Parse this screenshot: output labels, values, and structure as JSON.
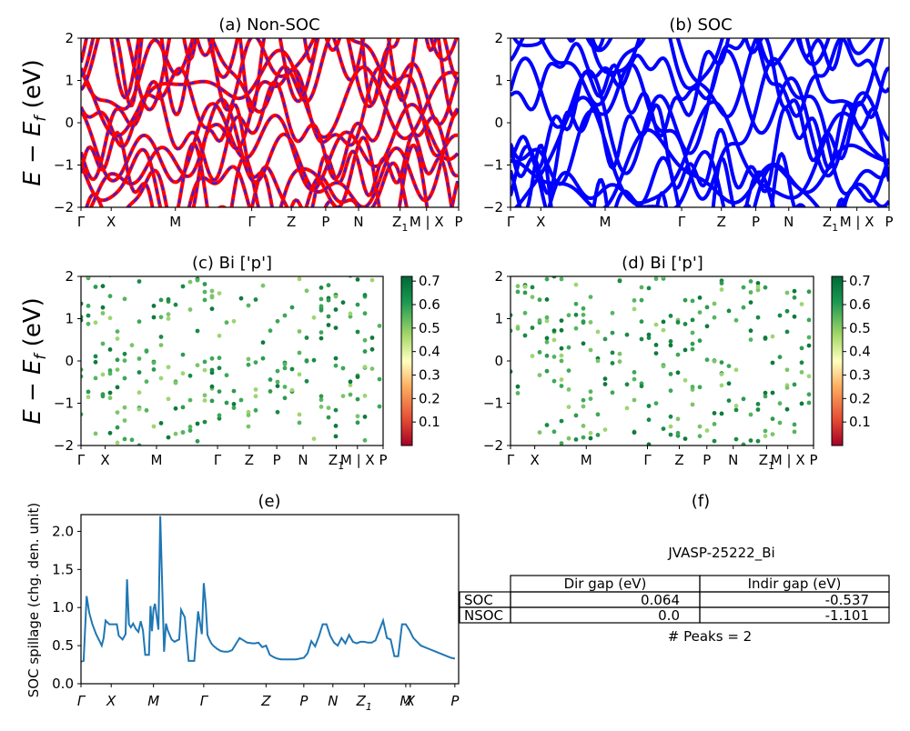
{
  "panels": [
    {
      "id": "a",
      "title": "(a) Non-SOC",
      "type": "bands",
      "colors": [
        "#ff0000",
        "#2020ff"
      ],
      "dashed": true
    },
    {
      "id": "b",
      "title": "(b) SOC",
      "type": "bands",
      "colors": [
        "#0000ff"
      ],
      "dashed": false
    },
    {
      "id": "c",
      "title": "(c)  Bi ['p']",
      "type": "projected"
    },
    {
      "id": "d",
      "title": "(d) Bi ['p']",
      "type": "projected"
    },
    {
      "id": "e",
      "title": "(e)",
      "type": "spillage"
    },
    {
      "id": "f",
      "title": "(f)",
      "type": "table"
    }
  ],
  "ylabel_bands": "E − E",
  "ylabel_sub": "f",
  "ylabel_unit": " (eV)",
  "ylabel_spillage": "SOC spillage (chg. den. unit)",
  "band_yticks": [
    "2",
    "1",
    "0",
    "−1",
    "−2"
  ],
  "kpath_ab": [
    {
      "label": "Γ",
      "sub": "",
      "pos": 0.0
    },
    {
      "label": "X",
      "sub": "",
      "pos": 0.08
    },
    {
      "label": "M",
      "sub": "",
      "pos": 0.25
    },
    {
      "label": "Γ",
      "sub": "",
      "pos": 0.452
    },
    {
      "label": "Z",
      "sub": "",
      "pos": 0.557
    },
    {
      "label": "P",
      "sub": "",
      "pos": 0.648
    },
    {
      "label": "N",
      "sub": "",
      "pos": 0.735
    },
    {
      "label": "Z",
      "sub": "1",
      "pos": 0.845
    },
    {
      "label": "M | X",
      "sub": "",
      "pos": 0.915
    },
    {
      "label": "P",
      "sub": "",
      "pos": 1.0
    }
  ],
  "kpath_cd": [
    {
      "label": "Γ",
      "sub": "",
      "pos": 0.0
    },
    {
      "label": "X",
      "sub": "",
      "pos": 0.08
    },
    {
      "label": "M",
      "sub": "",
      "pos": 0.25
    },
    {
      "label": "Γ",
      "sub": "",
      "pos": 0.452
    },
    {
      "label": "Z",
      "sub": "",
      "pos": 0.557
    },
    {
      "label": "P",
      "sub": "",
      "pos": 0.648
    },
    {
      "label": "N",
      "sub": "",
      "pos": 0.735
    },
    {
      "label": "Z",
      "sub": "1",
      "pos": 0.845
    },
    {
      "label": "M | X",
      "sub": "",
      "pos": 0.915
    },
    {
      "label": "P",
      "sub": "",
      "pos": 1.0
    }
  ],
  "colorbar": {
    "ticks": [
      "0.7",
      "0.6",
      "0.5",
      "0.4",
      "0.3",
      "0.2",
      "0.1"
    ],
    "min": 0.0,
    "max": 0.72
  },
  "chart_data": [
    {
      "type": "line",
      "panel": "a",
      "title": "(a) Non-SOC",
      "ylim": [
        -2,
        2
      ],
      "description": "band structure, non-SOC, red solid with blue dashed overlay"
    },
    {
      "type": "line",
      "panel": "b",
      "title": "(b) SOC",
      "ylim": [
        -2,
        2
      ]
    },
    {
      "type": "scatter",
      "panel": "c",
      "title": "(c)  Bi ['p']",
      "ylim": [
        -2,
        2
      ],
      "colorbar_range": [
        0.0,
        0.72
      ]
    },
    {
      "type": "scatter",
      "panel": "d",
      "title": "(d) Bi ['p']",
      "ylim": [
        -2,
        2
      ],
      "colorbar_range": [
        0.0,
        0.72
      ]
    },
    {
      "type": "line",
      "panel": "e",
      "title": "(e)",
      "ylabel": "SOC spillage (chg. den. unit)",
      "ylim": [
        0.0,
        2.22
      ],
      "yticks": [
        "0.0",
        "0.5",
        "1.0",
        "1.5",
        "2.0"
      ],
      "xticks": [
        {
          "label": "Γ",
          "pos": 0.0
        },
        {
          "label": "X",
          "pos": 0.08
        },
        {
          "label": "M",
          "pos": 0.192
        },
        {
          "label": "Γ",
          "pos": 0.325
        },
        {
          "label": "Z",
          "pos": 0.49
        },
        {
          "label": "P",
          "pos": 0.59
        },
        {
          "label": "N",
          "pos": 0.667
        },
        {
          "label": "Z",
          "sub": "1",
          "pos": 0.75
        },
        {
          "label": "M",
          "pos": 0.86
        },
        {
          "label": "X",
          "pos": 0.872
        },
        {
          "label": "P",
          "pos": 0.99
        }
      ],
      "x": [
        0,
        0.007,
        0.015,
        0.022,
        0.03,
        0.04,
        0.05,
        0.055,
        0.06,
        0.065,
        0.075,
        0.085,
        0.095,
        0.1,
        0.11,
        0.118,
        0.122,
        0.127,
        0.132,
        0.138,
        0.145,
        0.152,
        0.158,
        0.164,
        0.17,
        0.18,
        0.184,
        0.188,
        0.192,
        0.196,
        0.205,
        0.21,
        0.22,
        0.225,
        0.23,
        0.24,
        0.248,
        0.255,
        0.26,
        0.265,
        0.275,
        0.285,
        0.29,
        0.3,
        0.31,
        0.32,
        0.325,
        0.33,
        0.335,
        0.34,
        0.345,
        0.35,
        0.36,
        0.37,
        0.38,
        0.39,
        0.4,
        0.42,
        0.44,
        0.455,
        0.46,
        0.47,
        0.48,
        0.49,
        0.5,
        0.51,
        0.52,
        0.53,
        0.55,
        0.57,
        0.59,
        0.6,
        0.61,
        0.62,
        0.63,
        0.64,
        0.65,
        0.66,
        0.67,
        0.68,
        0.69,
        0.7,
        0.71,
        0.72,
        0.73,
        0.74,
        0.75,
        0.76,
        0.77,
        0.78,
        0.8,
        0.81,
        0.82,
        0.83,
        0.84,
        0.85,
        0.86,
        0.87,
        0.88,
        0.89,
        0.9,
        0.92,
        0.94,
        0.96,
        0.98,
        0.99
      ],
      "values": [
        0.29,
        0.3,
        1.15,
        0.93,
        0.78,
        0.65,
        0.55,
        0.5,
        0.6,
        0.83,
        0.78,
        0.78,
        0.78,
        0.63,
        0.58,
        0.65,
        1.37,
        0.78,
        0.74,
        0.79,
        0.72,
        0.68,
        0.82,
        0.7,
        0.38,
        0.38,
        1.02,
        0.69,
        0.98,
        1.05,
        0.71,
        2.2,
        0.42,
        0.79,
        0.7,
        0.58,
        0.55,
        0.57,
        0.58,
        0.97,
        0.87,
        0.3,
        0.3,
        0.3,
        0.95,
        0.65,
        1.32,
        1.05,
        0.64,
        0.58,
        0.53,
        0.5,
        0.46,
        0.43,
        0.42,
        0.42,
        0.44,
        0.6,
        0.54,
        0.53,
        0.53,
        0.54,
        0.48,
        0.5,
        0.38,
        0.35,
        0.33,
        0.32,
        0.32,
        0.32,
        0.34,
        0.4,
        0.56,
        0.49,
        0.62,
        0.78,
        0.78,
        0.63,
        0.54,
        0.5,
        0.6,
        0.53,
        0.64,
        0.55,
        0.53,
        0.55,
        0.55,
        0.54,
        0.54,
        0.57,
        0.83,
        0.6,
        0.58,
        0.36,
        0.36,
        0.78,
        0.78,
        0.7,
        0.6,
        0.55,
        0.5,
        0.46,
        0.42,
        0.38,
        0.34,
        0.33
      ]
    }
  ],
  "table": {
    "material": "JVASP-25222_Bi",
    "headers": [
      "",
      "Dir gap (eV)",
      "Indir gap (eV)"
    ],
    "rows": [
      [
        "SOC",
        "0.064",
        "-0.537"
      ],
      [
        "NSOC",
        "0.0",
        "-1.101"
      ]
    ],
    "peaks": "# Peaks = 2"
  }
}
